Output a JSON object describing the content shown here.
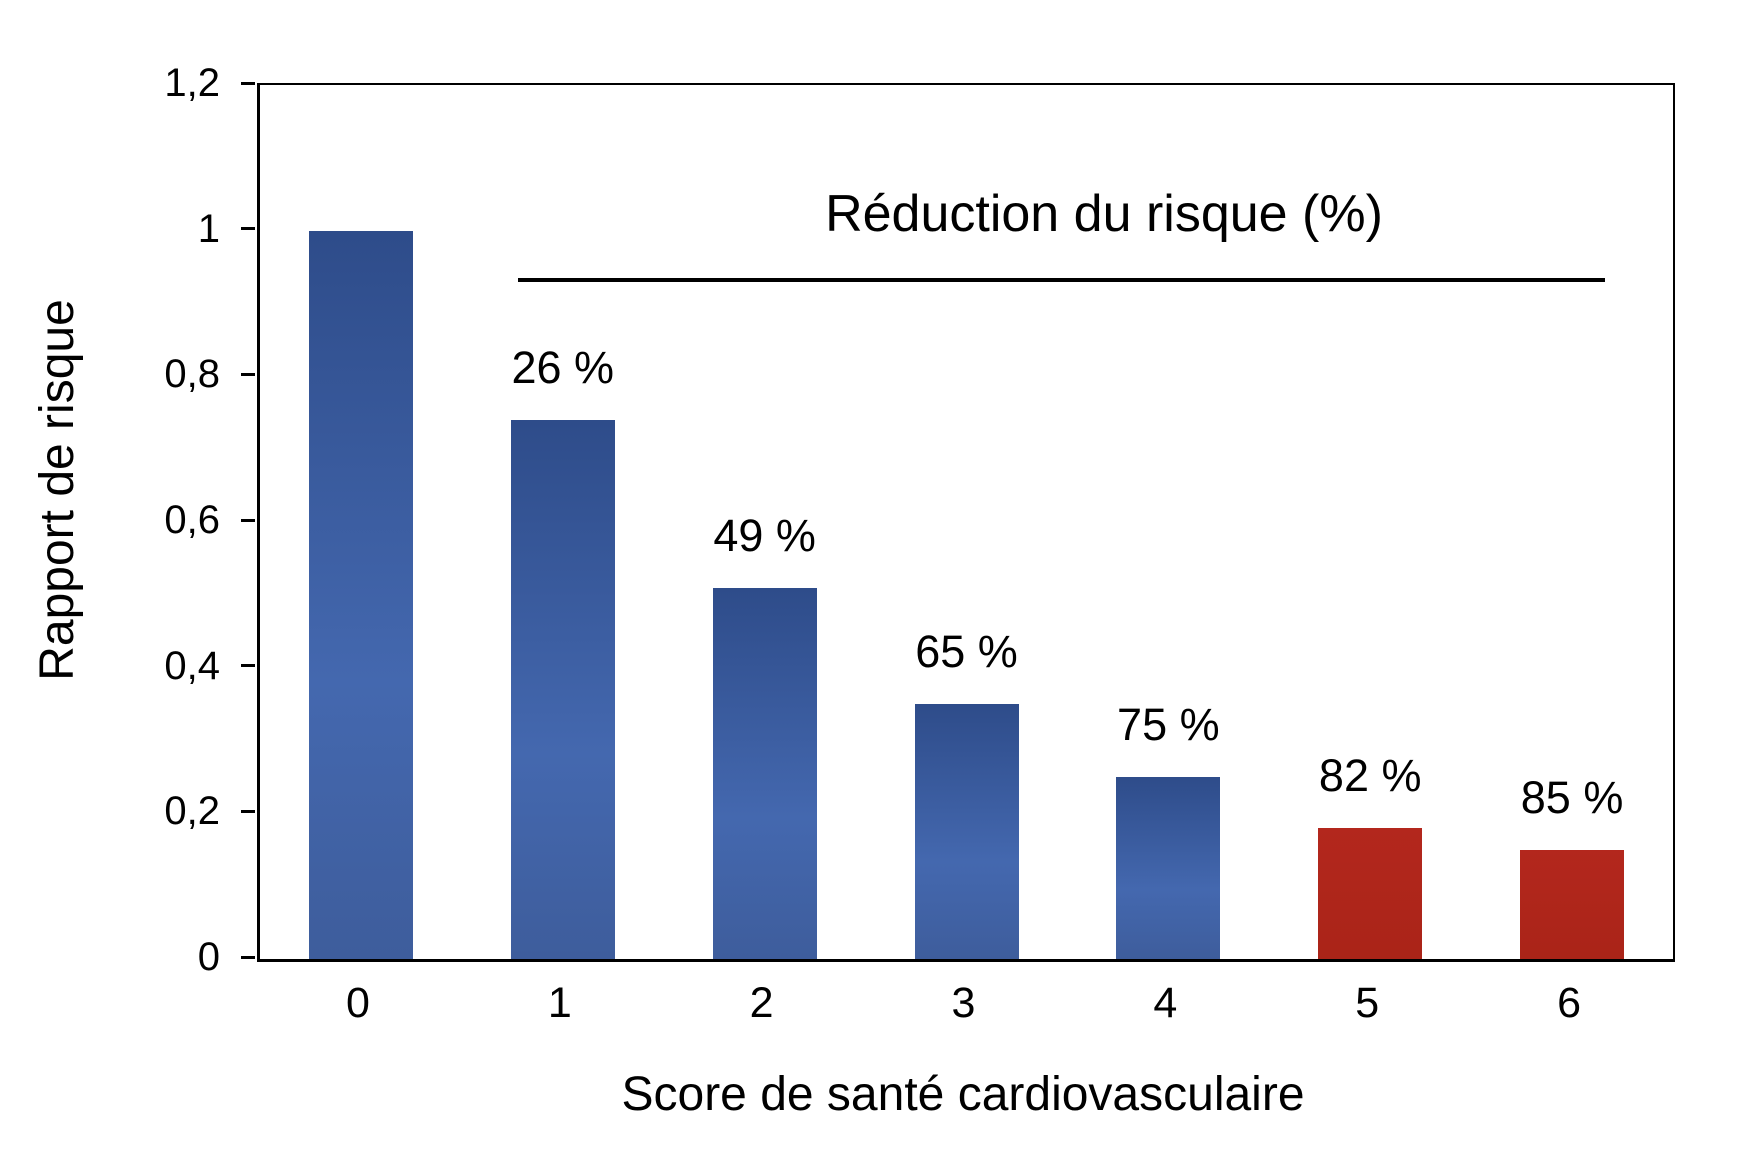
{
  "chart_data": {
    "type": "bar",
    "title": "",
    "annotation": {
      "label": "Réduction du risque (%)"
    },
    "xlabel": "Score de santé cardiovasculaire",
    "ylabel": "Rapport de risque",
    "categories": [
      "0",
      "1",
      "2",
      "3",
      "4",
      "5",
      "6"
    ],
    "values": [
      1.0,
      0.74,
      0.51,
      0.35,
      0.25,
      0.18,
      0.15
    ],
    "bar_value_labels": [
      "",
      "26 %",
      "49 %",
      "65 %",
      "75 %",
      "82 %",
      "85 %"
    ],
    "bar_colors": [
      "blue",
      "blue",
      "blue",
      "blue",
      "blue",
      "red",
      "red"
    ],
    "colors": {
      "blue_top": "#2e4c8a",
      "blue_mid": "#4468af",
      "blue_bottom": "#3e5d9c",
      "red_top": "#b3271d",
      "red_bottom": "#aa2418",
      "axis": "#000000"
    },
    "ylim": [
      0,
      1.2
    ],
    "yticks": [
      {
        "label": "0",
        "value": 0
      },
      {
        "label": "0,2",
        "value": 0.2
      },
      {
        "label": "0,4",
        "value": 0.4
      },
      {
        "label": "0,6",
        "value": 0.6
      },
      {
        "label": "0,8",
        "value": 0.8
      },
      {
        "label": "1",
        "value": 1
      },
      {
        "label": "1,2",
        "value": 1.2
      }
    ],
    "grid": false,
    "legend": "none"
  }
}
